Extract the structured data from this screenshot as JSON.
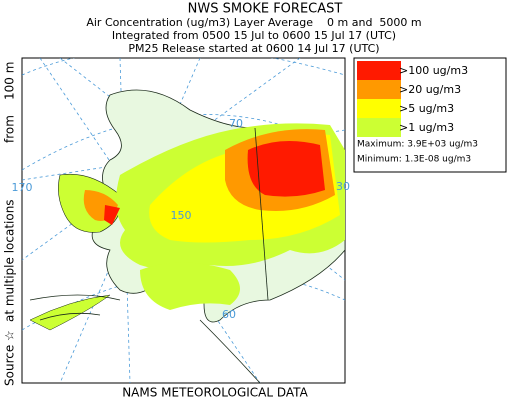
{
  "header": {
    "title": "NWS SMOKE FORECAST",
    "lines": [
      "Air Concentration (ug/m3) Layer Average    0 m and  5000 m",
      "Integrated from 0500 15 Jul to 0600 15 Jul 17 (UTC)",
      "PM25 Release started at 0600 14 Jul 17 (UTC)"
    ]
  },
  "side_labels": [
    "Source ☆",
    "at multiple locations",
    "from",
    "100 m"
  ],
  "legend": {
    "items": [
      {
        "label": ">100 ug/m3",
        "color": "#ff1a00"
      },
      {
        "label": ">20 ug/m3",
        "color": "#ff9900"
      },
      {
        "label": ">5 ug/m3",
        "color": "#ffff00"
      },
      {
        "label": ">1 ug/m3",
        "color": "#ccff33"
      }
    ],
    "maximum": "Maximum: 3.9E+03 ug/m3",
    "minimum": "Minimum: 1.3E-08 ug/m3"
  },
  "map_labels": [
    "70",
    "170",
    "150",
    "60",
    "30"
  ],
  "footer": "NAMS METEOROLOGICAL DATA"
}
